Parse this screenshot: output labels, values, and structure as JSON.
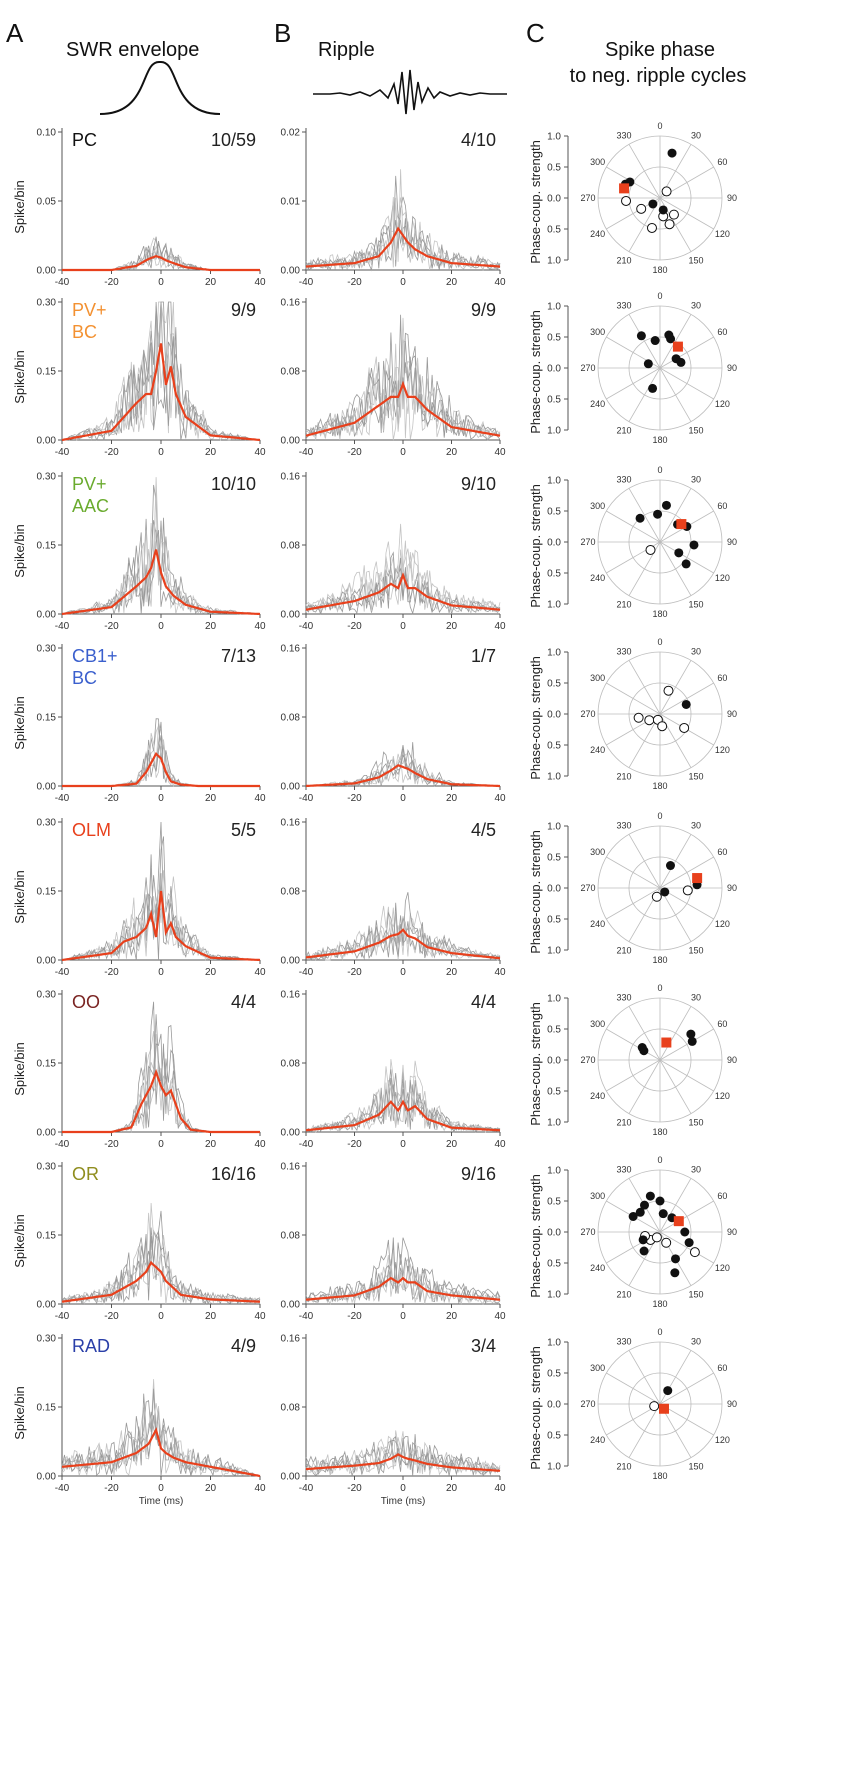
{
  "panels": {
    "A": {
      "letter": "A",
      "title": "SWR envelope"
    },
    "B": {
      "letter": "B",
      "title": "Ripple"
    },
    "C": {
      "letter": "C",
      "title_line1": "Spike phase",
      "title_line2": "to neg. ripple cycles"
    }
  },
  "axis_text": {
    "ylabel_hist": "Spike/bin",
    "ylabel_polar": "Phase-coup. strength",
    "xlabel_last": "Time (ms)"
  },
  "x_ticks": [
    "-40",
    "-20",
    "0",
    "20",
    "40"
  ],
  "polar_radial_ticks": [
    "1.0",
    "0.5",
    "0.0",
    "0.5",
    "1.0"
  ],
  "polar_angle_labels": [
    "0",
    "30",
    "60",
    "90",
    "120",
    "150",
    "180",
    "210",
    "240",
    "270",
    "300",
    "330"
  ],
  "colors": {
    "mean": "#e8401c",
    "trace": "#777777",
    "marker": "#e8401c"
  },
  "chart_data": [
    {
      "type": "line",
      "panel": "A",
      "row": 1,
      "cell_type": "PC",
      "cell_color": "#111111",
      "count": "10/59",
      "ylim": [
        0,
        0.1
      ],
      "yticks": [
        "0.10",
        "0.05",
        "0.00"
      ],
      "xlim": [
        -40,
        40
      ],
      "x": [
        -40,
        -20,
        -10,
        -5,
        -2,
        0,
        2,
        5,
        10,
        20,
        40
      ],
      "series": [
        {
          "values": [
            0,
            0,
            0.003,
            0.008,
            0.01,
            0.009,
            0.007,
            0.005,
            0.002,
            0,
            0
          ]
        }
      ]
    },
    {
      "type": "line",
      "panel": "B",
      "row": 1,
      "count": "4/10",
      "ylim": [
        0,
        0.02
      ],
      "yticks": [
        "0.02",
        "0.01",
        "0.00"
      ],
      "xlim": [
        -40,
        40
      ],
      "x": [
        -40,
        -20,
        -10,
        -5,
        -2,
        0,
        2,
        5,
        10,
        20,
        40
      ],
      "series": [
        {
          "values": [
            0.0005,
            0.001,
            0.002,
            0.004,
            0.006,
            0.005,
            0.004,
            0.003,
            0.002,
            0.001,
            0.0005
          ]
        }
      ]
    },
    {
      "type": "scatter",
      "panel": "C",
      "row": 1,
      "filled": [
        [
          15,
          0.75
        ],
        [
          292,
          0.6
        ],
        [
          298,
          0.55
        ],
        [
          230,
          0.15
        ],
        [
          165,
          0.2
        ]
      ],
      "open": [
        [
          45,
          0.15
        ],
        [
          265,
          0.55
        ],
        [
          195,
          0.5
        ],
        [
          140,
          0.35
        ],
        [
          160,
          0.45
        ],
        [
          240,
          0.35
        ],
        [
          170,
          0.3
        ]
      ],
      "mean": [
        285,
        0.6
      ]
    },
    {
      "type": "line",
      "panel": "A",
      "row": 2,
      "cell_type": "PV+\nBC",
      "cell_color": "#f39131",
      "count": "9/9",
      "ylim": [
        0,
        0.3
      ],
      "yticks": [
        "0.30",
        "0.15",
        "0.00"
      ],
      "xlim": [
        -40,
        40
      ],
      "x": [
        -40,
        -20,
        -10,
        -6,
        -4,
        -2,
        0,
        2,
        4,
        6,
        10,
        20,
        40
      ],
      "series": [
        {
          "values": [
            0,
            0.02,
            0.08,
            0.1,
            0.1,
            0.15,
            0.21,
            0.12,
            0.16,
            0.1,
            0.05,
            0.01,
            0
          ]
        }
      ]
    },
    {
      "type": "line",
      "panel": "B",
      "row": 2,
      "count": "9/9",
      "ylim": [
        0,
        0.16
      ],
      "yticks": [
        "0.16",
        "0.08",
        "0.00"
      ],
      "xlim": [
        -40,
        40
      ],
      "x": [
        -40,
        -20,
        -10,
        -5,
        -2,
        0,
        2,
        5,
        10,
        20,
        40
      ],
      "series": [
        {
          "values": [
            0.005,
            0.02,
            0.04,
            0.05,
            0.05,
            0.065,
            0.05,
            0.05,
            0.035,
            0.015,
            0.005
          ]
        }
      ]
    },
    {
      "type": "scatter",
      "panel": "C",
      "row": 2,
      "filled": [
        [
          330,
          0.6
        ],
        [
          350,
          0.45
        ],
        [
          15,
          0.55
        ],
        [
          20,
          0.5
        ],
        [
          60,
          0.3
        ],
        [
          75,
          0.35
        ],
        [
          200,
          0.35
        ],
        [
          290,
          0.2
        ]
      ],
      "open": [],
      "mean": [
        40,
        0.45
      ]
    },
    {
      "type": "line",
      "panel": "A",
      "row": 3,
      "cell_type": "PV+\nAAC",
      "cell_color": "#6aab2e",
      "count": "10/10",
      "ylim": [
        0,
        0.3
      ],
      "yticks": [
        "0.30",
        "0.15",
        "0.00"
      ],
      "xlim": [
        -40,
        40
      ],
      "x": [
        -40,
        -20,
        -10,
        -6,
        -4,
        -2,
        0,
        2,
        5,
        10,
        20,
        40
      ],
      "series": [
        {
          "values": [
            0,
            0.015,
            0.06,
            0.08,
            0.1,
            0.14,
            0.09,
            0.06,
            0.04,
            0.02,
            0.005,
            0
          ]
        }
      ]
    },
    {
      "type": "line",
      "panel": "B",
      "row": 3,
      "count": "9/10",
      "ylim": [
        0,
        0.16
      ],
      "yticks": [
        "0.16",
        "0.08",
        "0.00"
      ],
      "xlim": [
        -40,
        40
      ],
      "x": [
        -40,
        -20,
        -10,
        -5,
        -2,
        0,
        2,
        5,
        10,
        20,
        40
      ],
      "series": [
        {
          "values": [
            0.005,
            0.015,
            0.025,
            0.035,
            0.03,
            0.045,
            0.03,
            0.03,
            0.02,
            0.01,
            0.005
          ]
        }
      ]
    },
    {
      "type": "scatter",
      "panel": "C",
      "row": 3,
      "filled": [
        [
          320,
          0.5
        ],
        [
          355,
          0.45
        ],
        [
          10,
          0.6
        ],
        [
          45,
          0.4
        ],
        [
          60,
          0.5
        ],
        [
          95,
          0.55
        ],
        [
          120,
          0.35
        ],
        [
          130,
          0.55
        ]
      ],
      "open": [
        [
          230,
          0.2
        ]
      ],
      "mean": [
        50,
        0.45
      ]
    },
    {
      "type": "line",
      "panel": "A",
      "row": 4,
      "cell_type": "CB1+\nBC",
      "cell_color": "#3a5fcd",
      "count": "7/13",
      "ylim": [
        0,
        0.3
      ],
      "yticks": [
        "0.30",
        "0.15",
        "0.00"
      ],
      "xlim": [
        -40,
        40
      ],
      "x": [
        -40,
        -20,
        -10,
        -6,
        -4,
        -2,
        0,
        2,
        4,
        8,
        15,
        40
      ],
      "series": [
        {
          "values": [
            0,
            0,
            0.005,
            0.03,
            0.05,
            0.07,
            0.06,
            0.03,
            0.01,
            0.003,
            0,
            0
          ]
        }
      ]
    },
    {
      "type": "line",
      "panel": "B",
      "row": 4,
      "count": "1/7",
      "ylim": [
        0,
        0.16
      ],
      "yticks": [
        "0.16",
        "0.08",
        "0.00"
      ],
      "xlim": [
        -40,
        40
      ],
      "x": [
        -40,
        -20,
        -10,
        -5,
        -2,
        0,
        2,
        5,
        10,
        20,
        40
      ],
      "series": [
        {
          "values": [
            0,
            0.003,
            0.01,
            0.018,
            0.024,
            0.022,
            0.02,
            0.015,
            0.008,
            0.002,
            0
          ]
        }
      ]
    },
    {
      "type": "scatter",
      "panel": "C",
      "row": 4,
      "filled": [
        [
          70,
          0.45
        ]
      ],
      "open": [
        [
          20,
          0.4
        ],
        [
          260,
          0.35
        ],
        [
          240,
          0.2
        ],
        [
          200,
          0.1
        ],
        [
          170,
          0.2
        ],
        [
          120,
          0.45
        ]
      ],
      "mean": null
    },
    {
      "type": "line",
      "panel": "A",
      "row": 5,
      "cell_type": "OLM",
      "cell_color": "#e8401c",
      "count": "5/5",
      "ylim": [
        0,
        0.3
      ],
      "yticks": [
        "0.30",
        "0.15",
        "0.00"
      ],
      "xlim": [
        -40,
        40
      ],
      "x": [
        -40,
        -20,
        -15,
        -10,
        -6,
        -4,
        -2,
        0,
        2,
        4,
        6,
        10,
        20,
        40
      ],
      "series": [
        {
          "values": [
            0,
            0.015,
            0.04,
            0.05,
            0.07,
            0.1,
            0.05,
            0.15,
            0.06,
            0.08,
            0.05,
            0.03,
            0.005,
            0
          ]
        }
      ]
    },
    {
      "type": "line",
      "panel": "B",
      "row": 5,
      "count": "4/5",
      "ylim": [
        0,
        0.16
      ],
      "yticks": [
        "0.16",
        "0.08",
        "0.00"
      ],
      "xlim": [
        -40,
        40
      ],
      "x": [
        -40,
        -20,
        -10,
        -5,
        -2,
        0,
        2,
        5,
        10,
        20,
        40
      ],
      "series": [
        {
          "values": [
            0.003,
            0.01,
            0.02,
            0.028,
            0.03,
            0.035,
            0.028,
            0.025,
            0.015,
            0.008,
            0.002
          ]
        }
      ]
    },
    {
      "type": "scatter",
      "panel": "C",
      "row": 5,
      "filled": [
        [
          25,
          0.4
        ],
        [
          85,
          0.6
        ],
        [
          130,
          0.1
        ]
      ],
      "open": [
        [
          200,
          0.15
        ],
        [
          95,
          0.45
        ]
      ],
      "mean": [
        75,
        0.62
      ]
    },
    {
      "type": "line",
      "panel": "A",
      "row": 6,
      "cell_type": "OO",
      "cell_color": "#7a2422",
      "count": "4/4",
      "ylim": [
        0,
        0.3
      ],
      "yticks": [
        "0.30",
        "0.15",
        "0.00"
      ],
      "xlim": [
        -40,
        40
      ],
      "x": [
        -40,
        -20,
        -12,
        -8,
        -4,
        -2,
        0,
        2,
        4,
        8,
        12,
        20,
        40
      ],
      "series": [
        {
          "values": [
            0,
            0,
            0.01,
            0.06,
            0.1,
            0.13,
            0.1,
            0.08,
            0.09,
            0.03,
            0.005,
            0,
            0
          ]
        }
      ]
    },
    {
      "type": "line",
      "panel": "B",
      "row": 6,
      "count": "4/4",
      "ylim": [
        0,
        0.16
      ],
      "yticks": [
        "0.16",
        "0.08",
        "0.00"
      ],
      "xlim": [
        -40,
        40
      ],
      "x": [
        -40,
        -20,
        -10,
        -5,
        -2,
        0,
        2,
        5,
        10,
        20,
        40
      ],
      "series": [
        {
          "values": [
            0.002,
            0.008,
            0.02,
            0.035,
            0.025,
            0.035,
            0.025,
            0.03,
            0.015,
            0.005,
            0.002
          ]
        }
      ]
    },
    {
      "type": "scatter",
      "panel": "C",
      "row": 6,
      "filled": [
        [
          300,
          0.3
        ],
        [
          305,
          0.35
        ],
        [
          50,
          0.65
        ],
        [
          60,
          0.6
        ]
      ],
      "open": [],
      "mean": [
        20,
        0.3
      ]
    },
    {
      "type": "line",
      "panel": "A",
      "row": 7,
      "cell_type": "OR",
      "cell_color": "#8f8d1e",
      "count": "16/16",
      "ylim": [
        0,
        0.3
      ],
      "yticks": [
        "0.30",
        "0.15",
        "0.00"
      ],
      "xlim": [
        -40,
        40
      ],
      "x": [
        -40,
        -20,
        -10,
        -6,
        -4,
        -2,
        0,
        2,
        4,
        8,
        20,
        40
      ],
      "series": [
        {
          "values": [
            0.005,
            0.02,
            0.05,
            0.07,
            0.09,
            0.08,
            0.07,
            0.05,
            0.04,
            0.02,
            0.01,
            0.005
          ]
        }
      ]
    },
    {
      "type": "line",
      "panel": "B",
      "row": 7,
      "count": "9/16",
      "ylim": [
        0,
        0.16
      ],
      "yticks": [
        "0.16",
        "0.08",
        "0.00"
      ],
      "xlim": [
        -40,
        40
      ],
      "x": [
        -40,
        -20,
        -10,
        -5,
        -2,
        0,
        2,
        5,
        10,
        20,
        40
      ],
      "series": [
        {
          "values": [
            0.005,
            0.01,
            0.02,
            0.03,
            0.025,
            0.03,
            0.025,
            0.025,
            0.015,
            0.01,
            0.005
          ]
        }
      ]
    },
    {
      "type": "scatter",
      "panel": "C",
      "row": 7,
      "filled": [
        [
          300,
          0.5
        ],
        [
          315,
          0.45
        ],
        [
          330,
          0.5
        ],
        [
          345,
          0.6
        ],
        [
          0,
          0.5
        ],
        [
          10,
          0.3
        ],
        [
          40,
          0.3
        ],
        [
          90,
          0.4
        ],
        [
          110,
          0.5
        ],
        [
          150,
          0.5
        ],
        [
          160,
          0.7
        ],
        [
          220,
          0.4
        ],
        [
          245,
          0.3
        ]
      ],
      "open": [
        [
          230,
          0.2
        ],
        [
          210,
          0.1
        ],
        [
          150,
          0.2
        ],
        [
          120,
          0.65
        ],
        [
          255,
          0.25
        ]
      ],
      "mean": [
        60,
        0.35
      ]
    },
    {
      "type": "line",
      "panel": "A",
      "row": 8,
      "cell_type": "RAD",
      "cell_color": "#2a3fa8",
      "count": "4/9",
      "ylim": [
        0,
        0.3
      ],
      "yticks": [
        "0.30",
        "0.15",
        "0.00"
      ],
      "xlim": [
        -40,
        40
      ],
      "x": [
        -40,
        -20,
        -10,
        -5,
        -2,
        0,
        2,
        5,
        10,
        20,
        30,
        40
      ],
      "series": [
        {
          "values": [
            0.02,
            0.03,
            0.05,
            0.07,
            0.1,
            0.06,
            0.05,
            0.04,
            0.03,
            0.02,
            0.01,
            0
          ]
        }
      ]
    },
    {
      "type": "line",
      "panel": "B",
      "row": 8,
      "count": "3/4",
      "ylim": [
        0,
        0.16
      ],
      "yticks": [
        "0.16",
        "0.08",
        "0.00"
      ],
      "xlim": [
        -40,
        40
      ],
      "x": [
        -40,
        -20,
        -10,
        -5,
        -2,
        0,
        2,
        5,
        10,
        20,
        40
      ],
      "series": [
        {
          "values": [
            0.008,
            0.012,
            0.015,
            0.02,
            0.025,
            0.022,
            0.02,
            0.018,
            0.014,
            0.01,
            0.006
          ]
        }
      ]
    },
    {
      "type": "scatter",
      "panel": "C",
      "row": 8,
      "filled": [
        [
          30,
          0.25
        ]
      ],
      "open": [
        [
          250,
          0.1
        ]
      ],
      "mean": [
        140,
        0.1
      ]
    }
  ]
}
